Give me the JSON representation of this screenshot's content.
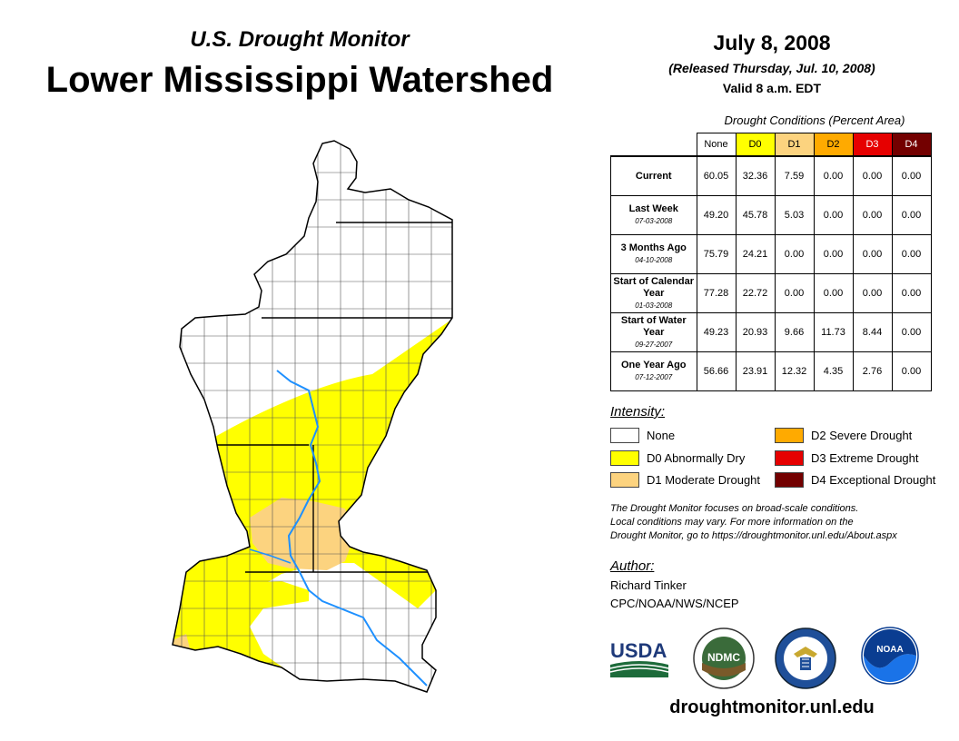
{
  "header": {
    "subtitle": "U.S. Drought Monitor",
    "title": "Lower Mississippi Watershed",
    "date": "July 8, 2008",
    "released": "(Released Thursday, Jul. 10, 2008)",
    "valid": "Valid 8 a.m. EDT"
  },
  "conditions": {
    "caption": "Drought Conditions (Percent Area)",
    "columns": [
      "None",
      "D0",
      "D1",
      "D2",
      "D3",
      "D4"
    ],
    "column_colors": [
      "#ffffff",
      "#ffff00",
      "#fcd37f",
      "#ffaa00",
      "#e60000",
      "#730000"
    ],
    "rows": [
      {
        "label": "Current",
        "date": "",
        "values": [
          "60.05",
          "32.36",
          "7.59",
          "0.00",
          "0.00",
          "0.00"
        ]
      },
      {
        "label": "Last Week",
        "date": "07-03-2008",
        "values": [
          "49.20",
          "45.78",
          "5.03",
          "0.00",
          "0.00",
          "0.00"
        ]
      },
      {
        "label": "3 Months Ago",
        "date": "04-10-2008",
        "values": [
          "75.79",
          "24.21",
          "0.00",
          "0.00",
          "0.00",
          "0.00"
        ]
      },
      {
        "label": "Start of Calendar Year",
        "date": "01-03-2008",
        "values": [
          "77.28",
          "22.72",
          "0.00",
          "0.00",
          "0.00",
          "0.00"
        ]
      },
      {
        "label": "Start of Water Year",
        "date": "09-27-2007",
        "values": [
          "49.23",
          "20.93",
          "9.66",
          "11.73",
          "8.44",
          "0.00"
        ]
      },
      {
        "label": "One Year Ago",
        "date": "07-12-2007",
        "values": [
          "56.66",
          "23.91",
          "12.32",
          "4.35",
          "2.76",
          "0.00"
        ]
      }
    ]
  },
  "legend": {
    "title": "Intensity:",
    "items": [
      {
        "label": "None",
        "color": "#ffffff"
      },
      {
        "label": "D0 Abnormally Dry",
        "color": "#ffff00"
      },
      {
        "label": "D1 Moderate Drought",
        "color": "#fcd37f"
      },
      {
        "label": "D2 Severe Drought",
        "color": "#ffaa00"
      },
      {
        "label": "D3 Extreme Drought",
        "color": "#e60000"
      },
      {
        "label": "D4 Exceptional Drought",
        "color": "#730000"
      }
    ]
  },
  "note": {
    "line1": "The Drought Monitor focuses on broad-scale conditions.",
    "line2": "Local conditions may vary. For more information on the",
    "line3": "Drought Monitor, go to https://droughtmonitor.unl.edu/About.aspx"
  },
  "author": {
    "title": "Author:",
    "name": "Richard Tinker",
    "org": "CPC/NOAA/NWS/NCEP"
  },
  "logos": {
    "usda": "USDA",
    "ndmc": "NDMC",
    "noaa": "NOAA"
  },
  "website": "droughtmonitor.unl.edu",
  "map": {
    "colors": {
      "none": "#ffffff",
      "d0": "#ffff00",
      "d1": "#fcd37f",
      "river": "#1e90ff"
    }
  }
}
